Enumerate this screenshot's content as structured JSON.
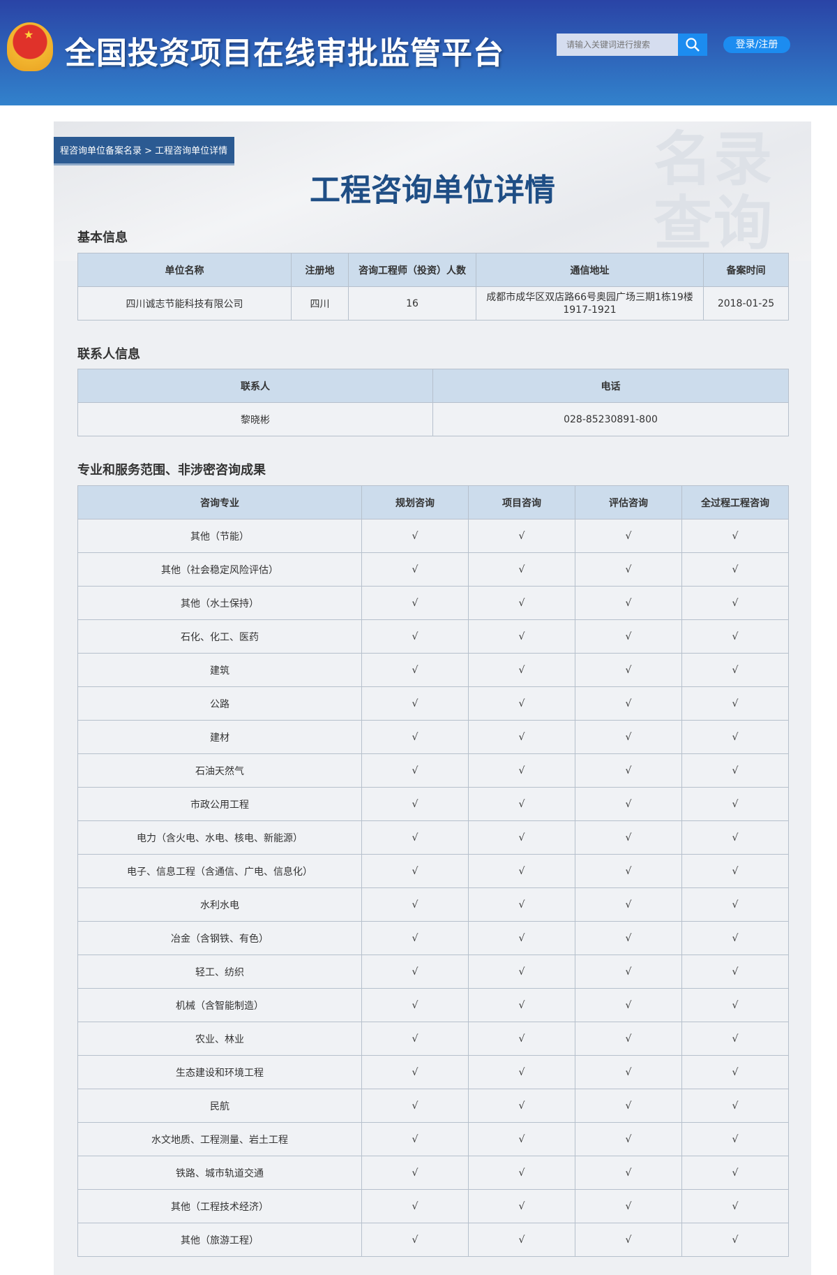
{
  "header": {
    "site_title": "全国投资项目在线审批监管平台",
    "search_placeholder": "请输入关键词进行搜索",
    "login_label": "登录/注册",
    "logo_icon": "national-emblem",
    "search_icon": "magnifier-icon"
  },
  "page": {
    "breadcrumb": "程咨询单位备案名录 > 工程咨询单位详情",
    "title": "工程咨询单位详情",
    "watermark": "名录查询"
  },
  "basic": {
    "heading": "基本信息",
    "columns": [
      "单位名称",
      "注册地",
      "咨询工程师（投资）人数",
      "通信地址",
      "备案时间"
    ],
    "row": [
      "四川诚志节能科技有限公司",
      "四川",
      "16",
      "成都市成华区双店路66号奥园广场三期1栋19楼1917-1921",
      "2018-01-25"
    ]
  },
  "contact": {
    "heading": "联系人信息",
    "columns": [
      "联系人",
      "电话"
    ],
    "row": [
      "黎晓彬",
      "028-85230891-800"
    ]
  },
  "scope": {
    "heading": "专业和服务范围、非涉密咨询成果",
    "columns": [
      "咨询专业",
      "规划咨询",
      "项目咨询",
      "评估咨询",
      "全过程工程咨询"
    ],
    "check": "√",
    "rows": [
      "其他（节能）",
      "其他（社会稳定风险评估）",
      "其他（水土保持）",
      "石化、化工、医药",
      "建筑",
      "公路",
      "建材",
      "石油天然气",
      "市政公用工程",
      "电力（含火电、水电、核电、新能源）",
      "电子、信息工程（含通信、广电、信息化）",
      "水利水电",
      "冶金（含钢铁、有色）",
      "轻工、纺织",
      "机械（含智能制造）",
      "农业、林业",
      "生态建设和环境工程",
      "民航",
      "水文地质、工程测量、岩土工程",
      "铁路、城市轨道交通",
      "其他（工程技术经济）",
      "其他（旅游工程）"
    ]
  }
}
